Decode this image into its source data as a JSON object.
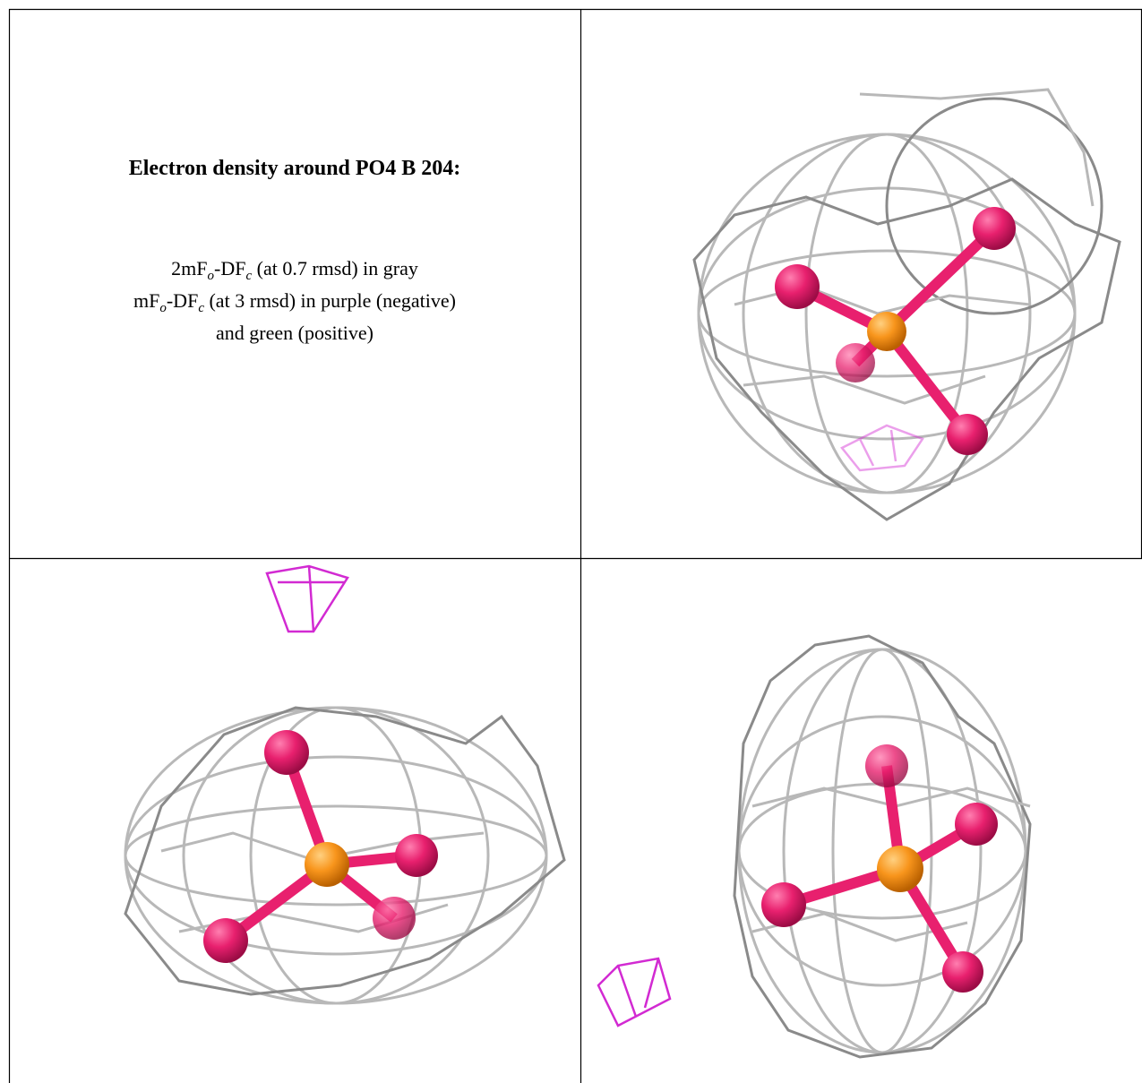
{
  "caption": {
    "title": "Electron density around PO4 B 204:",
    "lines": [
      [
        {
          "text": "2mF"
        },
        {
          "text": "o",
          "sub": true
        },
        {
          "text": "-DF"
        },
        {
          "text": "c",
          "sub": true
        },
        {
          "text": " (at 0.7 rmsd) in gray"
        }
      ],
      [
        {
          "text": "mF"
        },
        {
          "text": "o",
          "sub": true
        },
        {
          "text": "-DF"
        },
        {
          "text": "c",
          "sub": true
        },
        {
          "text": " (at 3 rmsd) in purple (negative)"
        }
      ],
      [
        {
          "text": "and green (positive)"
        }
      ]
    ]
  }
}
